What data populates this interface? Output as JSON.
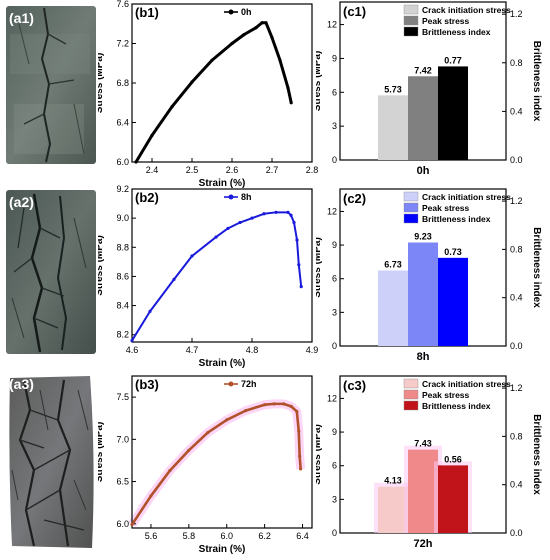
{
  "panel_labels": {
    "a": [
      "(a1)",
      "(a2)",
      "(a3)"
    ],
    "b": [
      "(b1)",
      "(b2)",
      "(b3)"
    ],
    "c": [
      "(c1)",
      "(c2)",
      "(c3)"
    ]
  },
  "colors": {
    "s0": {
      "line": "#000000",
      "light": "#d3d3d3",
      "mid": "#808080",
      "dark": "#000000"
    },
    "s8": {
      "line": "#1a1adc",
      "light": "#cdd0f8",
      "mid": "#7d86f6",
      "dark": "#0000ff"
    },
    "s72": {
      "line": "#b0522c",
      "light": "#f7caca",
      "mid": "#f08a8a",
      "dark": "#c0141a",
      "halo": "#fcc8f4"
    }
  },
  "chart_data": [
    {
      "id": "b1",
      "type": "line",
      "xlabel": "Strain (%)",
      "ylabel": "Stress (MPa)",
      "xlim": [
        2.35,
        2.8
      ],
      "ylim": [
        6.0,
        7.6
      ],
      "xticks": [
        2.4,
        2.5,
        2.6,
        2.7,
        2.8
      ],
      "yticks": [
        6.0,
        6.4,
        6.8,
        7.2,
        7.6
      ],
      "series": [
        {
          "name": "0h",
          "x": [
            2.36,
            2.4,
            2.45,
            2.5,
            2.55,
            2.6,
            2.63,
            2.66,
            2.675,
            2.685,
            2.7,
            2.72,
            2.74,
            2.748
          ],
          "y": [
            6.0,
            6.27,
            6.56,
            6.81,
            7.03,
            7.2,
            7.29,
            7.36,
            7.41,
            7.41,
            7.26,
            7.03,
            6.75,
            6.6
          ]
        }
      ]
    },
    {
      "id": "b2",
      "type": "line",
      "xlabel": "Strain (%)",
      "ylabel": "Stress (MPa)",
      "xlim": [
        4.6,
        4.9
      ],
      "ylim": [
        8.15,
        9.2
      ],
      "xticks": [
        4.6,
        4.7,
        4.8,
        4.9
      ],
      "yticks": [
        8.2,
        8.4,
        8.6,
        8.8,
        9.0,
        9.2
      ],
      "series": [
        {
          "name": "8h",
          "x": [
            4.6,
            4.63,
            4.67,
            4.7,
            4.74,
            4.76,
            4.78,
            4.8,
            4.82,
            4.84,
            4.86,
            4.865,
            4.87,
            4.875,
            4.878,
            4.882
          ],
          "y": [
            8.16,
            8.36,
            8.58,
            8.74,
            8.87,
            8.93,
            8.97,
            9.0,
            9.03,
            9.04,
            9.04,
            9.02,
            8.97,
            8.85,
            8.68,
            8.53
          ]
        }
      ]
    },
    {
      "id": "b3",
      "type": "line",
      "xlabel": "Strain (%)",
      "ylabel": "Stress (MPa)",
      "xlim": [
        5.5,
        6.45
      ],
      "ylim": [
        5.95,
        7.75
      ],
      "xticks": [
        5.6,
        5.8,
        6.0,
        6.2,
        6.4
      ],
      "yticks": [
        6.0,
        6.5,
        7.0,
        7.5
      ],
      "series": [
        {
          "name": "72h",
          "x": [
            5.5,
            5.6,
            5.7,
            5.8,
            5.9,
            6.0,
            6.1,
            6.2,
            6.25,
            6.3,
            6.34,
            6.37,
            6.38,
            6.385,
            6.39
          ],
          "y": [
            5.99,
            6.33,
            6.63,
            6.87,
            7.08,
            7.23,
            7.34,
            7.41,
            7.42,
            7.42,
            7.39,
            7.33,
            7.1,
            6.8,
            6.65
          ]
        }
      ]
    },
    {
      "id": "c1",
      "type": "bar",
      "categories": [
        "0h"
      ],
      "ylabel_left": "Stress (MPa)",
      "ylabel_right": "Brittleness index",
      "ylim_left": [
        0,
        14
      ],
      "yticks_left": [
        0,
        3,
        6,
        9,
        12
      ],
      "ylim_right": [
        0,
        1.3
      ],
      "yticks_right": [
        "0.0",
        "0.4",
        "0.8",
        "1.2"
      ],
      "series": [
        {
          "name": "Crack initiation stress",
          "values": [
            5.73
          ],
          "label": "5.73",
          "axis": "left"
        },
        {
          "name": "Peak stress",
          "values": [
            7.42
          ],
          "label": "7.42",
          "axis": "left"
        },
        {
          "name": "Brittleness index",
          "values": [
            0.77
          ],
          "label": "0.77",
          "axis": "right"
        }
      ]
    },
    {
      "id": "c2",
      "type": "bar",
      "categories": [
        "8h"
      ],
      "ylabel_left": "Stress (MPa)",
      "ylabel_right": "Brittleness index",
      "ylim_left": [
        0,
        14
      ],
      "yticks_left": [
        0,
        3,
        6,
        9,
        12
      ],
      "ylim_right": [
        0,
        1.3
      ],
      "yticks_right": [
        "0.0",
        "0.4",
        "0.8",
        "1.2"
      ],
      "series": [
        {
          "name": "Crack initiation stress",
          "values": [
            6.73
          ],
          "label": "6.73",
          "axis": "left"
        },
        {
          "name": "Peak stress",
          "values": [
            9.23
          ],
          "label": "9.23",
          "axis": "left"
        },
        {
          "name": "Brittleness index",
          "values": [
            0.73
          ],
          "label": "0.73",
          "axis": "right"
        }
      ]
    },
    {
      "id": "c3",
      "type": "bar",
      "categories": [
        "72h"
      ],
      "ylabel_left": "Stress (MPa)",
      "ylabel_right": "Brittleness index",
      "ylim_left": [
        0,
        14
      ],
      "yticks_left": [
        0,
        3,
        6,
        9,
        12
      ],
      "ylim_right": [
        0,
        1.3
      ],
      "yticks_right": [
        "0.0",
        "0.4",
        "0.8",
        "1.2"
      ],
      "series": [
        {
          "name": "Crack initiation stress",
          "values": [
            4.13
          ],
          "label": "4.13",
          "axis": "left"
        },
        {
          "name": "Peak stress",
          "values": [
            7.43
          ],
          "label": "7.43",
          "axis": "left"
        },
        {
          "name": "Brittleness index",
          "values": [
            0.56
          ],
          "label": "0.56",
          "axis": "right"
        }
      ]
    }
  ]
}
